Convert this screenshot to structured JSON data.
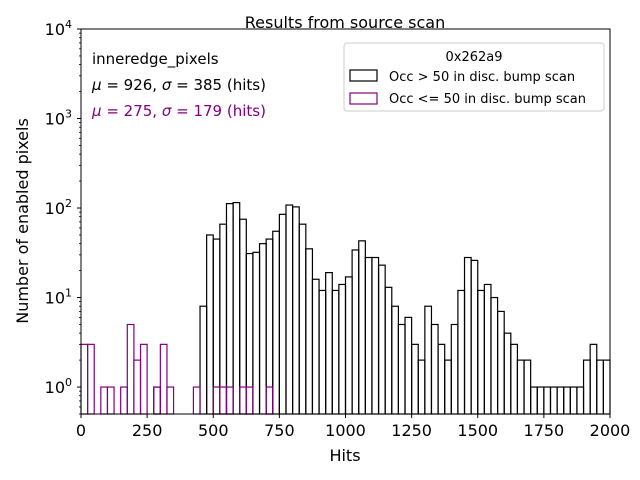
{
  "chart_data": {
    "type": "step-histogram",
    "title": "Results from source scan",
    "xlabel": "Hits",
    "ylabel": "Number of enabled pixels",
    "xlim": [
      0,
      2000
    ],
    "ylim_log": [
      0.5,
      10000
    ],
    "yscale": "log",
    "bin_width": 25,
    "x_ticks": [
      0,
      250,
      500,
      750,
      1000,
      1250,
      1500,
      1750,
      2000
    ],
    "x_tick_labels": [
      "0",
      "250",
      "500",
      "750",
      "1000",
      "1250",
      "1500",
      "1750",
      "2000"
    ],
    "y_ticks": [
      1,
      10,
      100,
      1000,
      10000
    ],
    "y_tick_labels": [
      {
        "base": "10",
        "exp": "0"
      },
      {
        "base": "10",
        "exp": "1"
      },
      {
        "base": "10",
        "exp": "2"
      },
      {
        "base": "10",
        "exp": "3"
      },
      {
        "base": "10",
        "exp": "4"
      }
    ],
    "annotations": {
      "name": "inneredge_pixels",
      "stats_black": {
        "mu_sym": "μ",
        "sigma_sym": "σ",
        "mu": "926",
        "sigma": "385",
        "unit": "(hits)"
      },
      "stats_magenta": {
        "mu_sym": "μ",
        "sigma_sym": "σ",
        "mu": "275",
        "sigma": "179",
        "unit": "(hits)"
      }
    },
    "legend": {
      "title": "0x262a9",
      "placement": "top-right",
      "entries": [
        {
          "label": "Occ > 50 in disc. bump scan",
          "color": "#000000"
        },
        {
          "label": "Occ <= 50 in disc. bump scan",
          "color": "#800080"
        }
      ]
    },
    "series": [
      {
        "name": "Occ > 50 in disc. bump scan",
        "color": "#000000",
        "bins": [
          [
            275,
            1
          ],
          [
            450,
            8
          ],
          [
            475,
            50
          ],
          [
            500,
            45
          ],
          [
            525,
            66
          ],
          [
            550,
            112
          ],
          [
            575,
            115
          ],
          [
            600,
            75
          ],
          [
            625,
            31
          ],
          [
            650,
            32
          ],
          [
            675,
            40
          ],
          [
            700,
            45
          ],
          [
            725,
            55
          ],
          [
            750,
            85
          ],
          [
            775,
            108
          ],
          [
            800,
            103
          ],
          [
            825,
            66
          ],
          [
            850,
            35
          ],
          [
            875,
            16
          ],
          [
            900,
            12
          ],
          [
            925,
            19
          ],
          [
            950,
            12
          ],
          [
            975,
            14
          ],
          [
            1000,
            17
          ],
          [
            1025,
            34
          ],
          [
            1050,
            43
          ],
          [
            1075,
            28
          ],
          [
            1100,
            28
          ],
          [
            1125,
            23
          ],
          [
            1150,
            13
          ],
          [
            1175,
            8
          ],
          [
            1200,
            5
          ],
          [
            1225,
            6
          ],
          [
            1250,
            3
          ],
          [
            1275,
            2
          ],
          [
            1300,
            8
          ],
          [
            1325,
            5
          ],
          [
            1350,
            3
          ],
          [
            1375,
            2
          ],
          [
            1400,
            5
          ],
          [
            1425,
            12
          ],
          [
            1450,
            28
          ],
          [
            1475,
            26
          ],
          [
            1500,
            12
          ],
          [
            1525,
            14
          ],
          [
            1550,
            10
          ],
          [
            1575,
            7
          ],
          [
            1600,
            4
          ],
          [
            1625,
            3
          ],
          [
            1650,
            2
          ],
          [
            1675,
            2
          ],
          [
            1700,
            1
          ],
          [
            1725,
            1
          ],
          [
            1750,
            1
          ],
          [
            1775,
            1
          ],
          [
            1800,
            1
          ],
          [
            1825,
            1
          ],
          [
            1850,
            1
          ],
          [
            1875,
            1
          ],
          [
            1900,
            2
          ],
          [
            1925,
            3
          ],
          [
            1950,
            2
          ],
          [
            1975,
            2
          ]
        ]
      },
      {
        "name": "Occ <= 50 in disc. bump scan",
        "color": "#800080",
        "bins": [
          [
            0,
            3
          ],
          [
            25,
            3
          ],
          [
            75,
            1
          ],
          [
            100,
            1
          ],
          [
            150,
            1
          ],
          [
            175,
            5
          ],
          [
            200,
            2
          ],
          [
            225,
            3
          ],
          [
            275,
            1
          ],
          [
            300,
            3
          ],
          [
            325,
            1
          ],
          [
            425,
            1
          ],
          [
            500,
            1
          ],
          [
            525,
            1
          ],
          [
            550,
            1
          ],
          [
            600,
            1
          ],
          [
            625,
            1
          ],
          [
            700,
            1
          ]
        ]
      }
    ]
  }
}
